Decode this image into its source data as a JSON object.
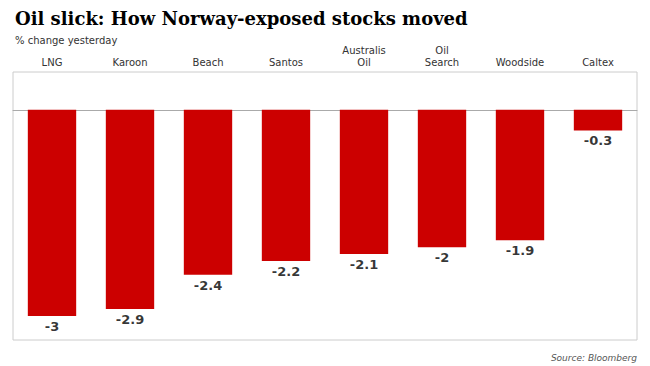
{
  "chart_data": {
    "type": "bar",
    "title": "Oil slick: How Norway-exposed stocks moved",
    "subtitle": "% change yesterday",
    "annotations": [
      "Source: Bloomberg"
    ],
    "categories": [
      "LNG",
      "Karoon",
      "Beach",
      "Santos",
      "Australis\nOil",
      "Oil\nSearch",
      "Woodside",
      "Caltex"
    ],
    "values": [
      -3.0,
      -2.9,
      -2.4,
      -2.2,
      -2.1,
      -2.0,
      -1.9,
      -0.3
    ],
    "color": "#cc0000",
    "ylim": [
      -3.35,
      0.55
    ],
    "grid": false,
    "data_labels": true,
    "tick_labels": "x"
  }
}
